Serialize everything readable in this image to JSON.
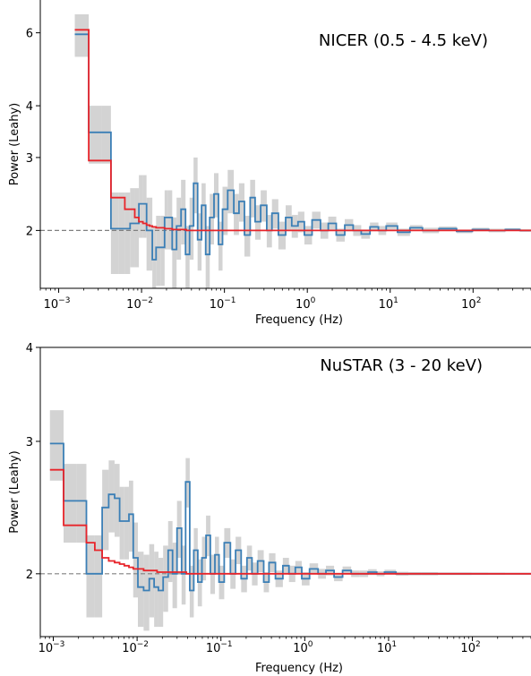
{
  "chart_data": [
    {
      "type": "line",
      "title": "NICER (0.5 - 4.5 keV)",
      "xlabel": "Frequency (Hz)",
      "ylabel": "Power (Leahy)",
      "xscale": "log",
      "yscale": "log",
      "xlim": [
        0.0006,
        500
      ],
      "ylim": [
        1.45,
        7.2
      ],
      "x_ticks": [
        {
          "value": 0.001,
          "base": "10",
          "exp": "−3"
        },
        {
          "value": 0.01,
          "base": "10",
          "exp": "−2"
        },
        {
          "value": 0.1,
          "base": "10",
          "exp": "−1"
        },
        {
          "value": 1,
          "base": "10",
          "exp": "0"
        },
        {
          "value": 10,
          "base": "10",
          "exp": "1"
        },
        {
          "value": 100,
          "base": "10",
          "exp": "2"
        }
      ],
      "y_ticks": [
        {
          "value": 2,
          "label": "2"
        },
        {
          "value": 3,
          "label": "3"
        },
        {
          "value": 4,
          "label": "4"
        },
        {
          "value": 6,
          "label": "6"
        }
      ],
      "reference_line": 2,
      "legend_position": "top-right",
      "colors": {
        "data": "#3b7fb6",
        "model": "#e8242a",
        "error_band": "#d3d3d3",
        "reference": "#808080"
      },
      "series": [
        {
          "role": "data",
          "x": [
            0.0019,
            0.0028,
            0.0038,
            0.0048,
            0.0058,
            0.0068,
            0.0078,
            0.0088,
            0.0098,
            0.011,
            0.012,
            0.013,
            0.014,
            0.016,
            0.018,
            0.02,
            0.022,
            0.025,
            0.028,
            0.032,
            0.036,
            0.04,
            0.045,
            0.05,
            0.056,
            0.063,
            0.07,
            0.08,
            0.09,
            0.1,
            0.12,
            0.14,
            0.16,
            0.19,
            0.22,
            0.25,
            0.3,
            0.35,
            0.4,
            0.5,
            0.6,
            0.7,
            0.85,
            1.0,
            1.3,
            1.6,
            2.0,
            2.5,
            3.2,
            4.0,
            5.0,
            6.5,
            8.0,
            10,
            15,
            20,
            30,
            50,
            80,
            120,
            200,
            300,
            450
          ],
          "y": [
            5.95,
            3.45,
            3.45,
            2.02,
            2.02,
            2.02,
            2.08,
            2.08,
            2.32,
            2.32,
            2.0,
            2.0,
            1.7,
            1.82,
            1.82,
            2.15,
            2.15,
            1.8,
            2.05,
            2.25,
            1.75,
            2.05,
            2.6,
            1.9,
            2.3,
            1.75,
            2.15,
            2.45,
            1.85,
            2.25,
            2.5,
            2.2,
            2.35,
            1.95,
            2.4,
            2.1,
            2.3,
            2.0,
            2.2,
            1.95,
            2.15,
            2.05,
            2.1,
            1.95,
            2.12,
            2.0,
            2.08,
            1.95,
            2.06,
            2.0,
            1.96,
            2.04,
            2.0,
            2.05,
            1.98,
            2.03,
            2.0,
            2.02,
            1.99,
            2.01,
            2.0,
            2.01,
            2.0
          ],
          "err": [
            0.7,
            0.55,
            0.55,
            0.45,
            0.45,
            0.45,
            0.45,
            0.45,
            0.4,
            0.4,
            0.4,
            0.4,
            0.35,
            0.35,
            0.35,
            0.35,
            0.35,
            0.35,
            0.35,
            0.4,
            0.3,
            0.35,
            0.4,
            0.3,
            0.3,
            0.3,
            0.3,
            0.3,
            0.25,
            0.3,
            0.3,
            0.25,
            0.25,
            0.22,
            0.25,
            0.2,
            0.2,
            0.18,
            0.18,
            0.15,
            0.15,
            0.13,
            0.12,
            0.1,
            0.1,
            0.09,
            0.08,
            0.07,
            0.07,
            0.06,
            0.05,
            0.05,
            0.05,
            0.04,
            0.04,
            0.03,
            0.03,
            0.025,
            0.02,
            0.02,
            0.02,
            0.015,
            0.015
          ]
        },
        {
          "role": "model",
          "x": [
            0.0019,
            0.0028,
            0.0038,
            0.0048,
            0.0058,
            0.0068,
            0.0078,
            0.0088,
            0.0098,
            0.011,
            0.012,
            0.013,
            0.014,
            0.016,
            0.018,
            0.02,
            0.022,
            0.025,
            0.03,
            0.04,
            0.06,
            0.1,
            1,
            10,
            100,
            450
          ],
          "y": [
            6.1,
            2.95,
            2.95,
            2.4,
            2.4,
            2.25,
            2.25,
            2.15,
            2.1,
            2.08,
            2.06,
            2.05,
            2.04,
            2.03,
            2.03,
            2.02,
            2.02,
            2.01,
            2.01,
            2.0,
            2.0,
            2.0,
            2.0,
            2.0,
            2.0,
            2.0
          ]
        }
      ]
    },
    {
      "type": "line",
      "title": "NuSTAR (3 - 20 keV)",
      "xlabel": "Frequency (Hz)",
      "ylabel": "Power (Leahy)",
      "xscale": "log",
      "yscale": "log",
      "xlim": [
        0.0007,
        500
      ],
      "ylim": [
        1.65,
        4.0
      ],
      "x_ticks": [
        {
          "value": 0.001,
          "base": "10",
          "exp": "−3"
        },
        {
          "value": 0.01,
          "base": "10",
          "exp": "−2"
        },
        {
          "value": 0.1,
          "base": "10",
          "exp": "−1"
        },
        {
          "value": 1,
          "base": "10",
          "exp": "0"
        },
        {
          "value": 10,
          "base": "10",
          "exp": "1"
        },
        {
          "value": 100,
          "base": "10",
          "exp": "2"
        }
      ],
      "y_ticks": [
        {
          "value": 2,
          "label": "2"
        },
        {
          "value": 3,
          "label": "3"
        },
        {
          "value": 4,
          "label": "4"
        }
      ],
      "reference_line": 2,
      "legend_position": "top-right",
      "colors": {
        "data": "#3b7fb6",
        "model": "#e8242a",
        "error_band": "#d3d3d3",
        "reference": "#808080"
      },
      "series": [
        {
          "role": "data",
          "x": [
            0.0011,
            0.0016,
            0.0022,
            0.0028,
            0.0035,
            0.0042,
            0.005,
            0.0058,
            0.0066,
            0.0075,
            0.0085,
            0.0095,
            0.011,
            0.013,
            0.015,
            0.017,
            0.019,
            0.022,
            0.025,
            0.028,
            0.032,
            0.036,
            0.04,
            0.045,
            0.05,
            0.056,
            0.063,
            0.07,
            0.08,
            0.09,
            0.1,
            0.12,
            0.14,
            0.16,
            0.19,
            0.22,
            0.25,
            0.3,
            0.35,
            0.4,
            0.5,
            0.6,
            0.7,
            0.85,
            1.0,
            1.3,
            1.6,
            2.0,
            2.5,
            3.2,
            4.0,
            5.0,
            6.5,
            8.0,
            10,
            15,
            20,
            30,
            50,
            80,
            120,
            200,
            300,
            450
          ],
          "y": [
            2.98,
            2.5,
            2.5,
            2.0,
            2.0,
            2.45,
            2.55,
            2.52,
            2.35,
            2.35,
            2.4,
            2.1,
            1.92,
            1.9,
            1.97,
            1.92,
            1.9,
            1.98,
            2.15,
            2.0,
            2.3,
            2.0,
            2.65,
            1.9,
            2.15,
            1.95,
            2.1,
            2.25,
            2.0,
            2.12,
            1.95,
            2.2,
            2.0,
            2.15,
            1.97,
            2.1,
            2.0,
            2.08,
            1.95,
            2.07,
            1.97,
            2.05,
            2.0,
            2.04,
            1.97,
            2.03,
            2.0,
            2.02,
            1.98,
            2.02,
            2.0,
            2.0,
            2.01,
            2.0,
            2.01,
            2.0,
            2.0,
            2.0,
            2.0,
            2.0,
            2.0,
            2.0,
            2.0,
            2.0
          ],
          "err": [
            0.32,
            0.3,
            0.3,
            0.25,
            0.25,
            0.3,
            0.28,
            0.28,
            0.26,
            0.26,
            0.26,
            0.24,
            0.22,
            0.22,
            0.22,
            0.22,
            0.2,
            0.2,
            0.2,
            0.2,
            0.2,
            0.18,
            0.2,
            0.15,
            0.15,
            0.14,
            0.14,
            0.14,
            0.12,
            0.12,
            0.1,
            0.1,
            0.09,
            0.09,
            0.08,
            0.08,
            0.07,
            0.07,
            0.06,
            0.06,
            0.05,
            0.05,
            0.05,
            0.04,
            0.04,
            0.035,
            0.03,
            0.03,
            0.025,
            0.025,
            0.02,
            0.02,
            0.018,
            0.015,
            0.015,
            0.012,
            0.01,
            0.01,
            0.008,
            0.008,
            0.007,
            0.006,
            0.005,
            0.005
          ]
        },
        {
          "role": "model",
          "x": [
            0.0011,
            0.0016,
            0.0022,
            0.0028,
            0.0035,
            0.0042,
            0.005,
            0.0058,
            0.0066,
            0.0075,
            0.0085,
            0.0095,
            0.011,
            0.013,
            0.015,
            0.02,
            0.03,
            0.05,
            0.1,
            1,
            10,
            100,
            450
          ],
          "y": [
            2.75,
            2.32,
            2.32,
            2.2,
            2.15,
            2.1,
            2.08,
            2.07,
            2.06,
            2.05,
            2.04,
            2.03,
            2.03,
            2.02,
            2.02,
            2.01,
            2.01,
            2.0,
            2.0,
            2.0,
            2.0,
            2.0,
            2.0
          ]
        }
      ]
    }
  ]
}
